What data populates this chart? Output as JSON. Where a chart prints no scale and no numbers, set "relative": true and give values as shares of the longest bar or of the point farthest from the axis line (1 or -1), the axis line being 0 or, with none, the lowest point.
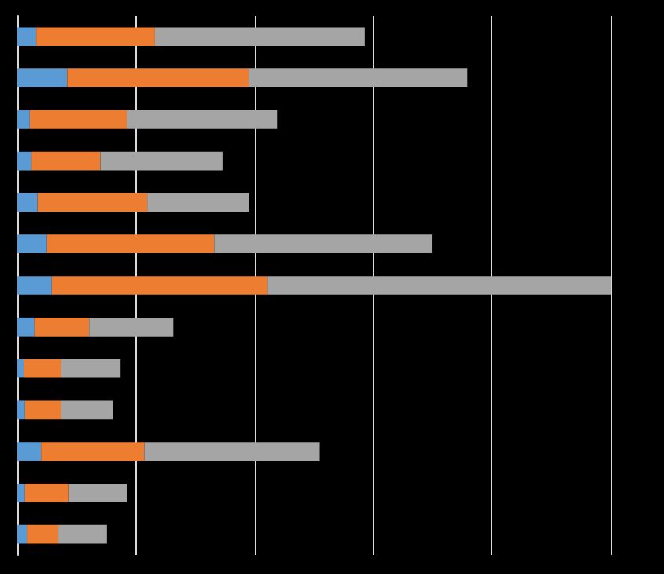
{
  "chart_data": {
    "type": "bar",
    "orientation": "horizontal",
    "stacked": true,
    "relative": true,
    "grid": "x",
    "categories": [
      null,
      null,
      null,
      null,
      null,
      null,
      null,
      null,
      null,
      null,
      null,
      null,
      null
    ],
    "series": [
      {
        "color": "#5b9bd5",
        "values": [
          0.032,
          0.084,
          0.021,
          0.024,
          0.034,
          0.05,
          0.058,
          0.029,
          0.011,
          0.013,
          0.04,
          0.013,
          0.016
        ]
      },
      {
        "color": "#ed7d31",
        "values": [
          0.2,
          0.306,
          0.164,
          0.116,
          0.185,
          0.282,
          0.364,
          0.092,
          0.063,
          0.061,
          0.174,
          0.074,
          0.053
        ]
      },
      {
        "color": "#a5a5a5",
        "values": [
          0.354,
          0.369,
          0.253,
          0.206,
          0.172,
          0.367,
          0.578,
          0.142,
          0.1,
          0.087,
          0.296,
          0.098,
          0.082
        ]
      }
    ]
  }
}
